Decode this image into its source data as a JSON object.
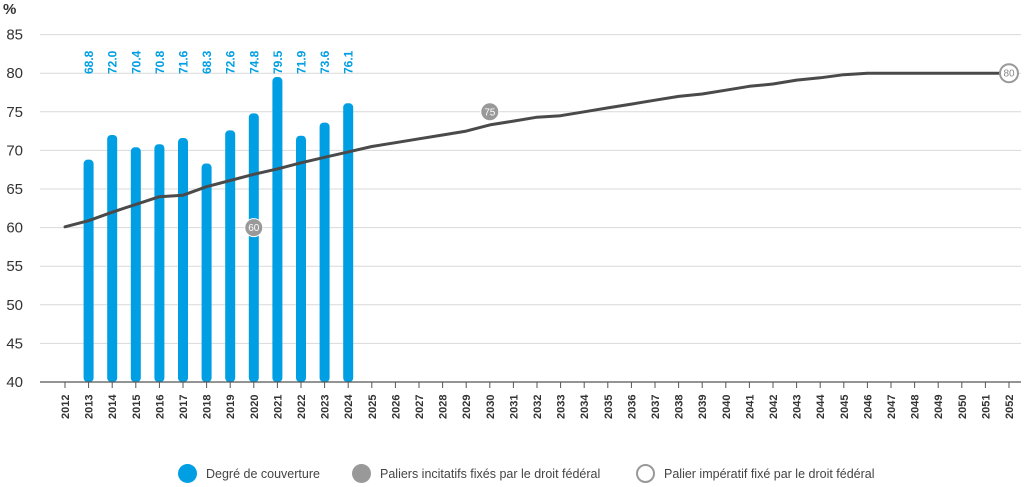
{
  "chart_data": {
    "type": "bar+line",
    "unit_label": "%",
    "ylim": [
      40,
      85
    ],
    "yticks": [
      40,
      45,
      50,
      55,
      60,
      65,
      70,
      75,
      80,
      85
    ],
    "grid": true,
    "years": [
      "2012",
      "2013",
      "2014",
      "2015",
      "2016",
      "2017",
      "2018",
      "2019",
      "2020",
      "2021",
      "2022",
      "2023",
      "2024",
      "2025",
      "2026",
      "2027",
      "2028",
      "2029",
      "2030",
      "2031",
      "2032",
      "2033",
      "2034",
      "2035",
      "2036",
      "2037",
      "2038",
      "2039",
      "2040",
      "2041",
      "2042",
      "2043",
      "2044",
      "2045",
      "2046",
      "2047",
      "2048",
      "2049",
      "2050",
      "2051",
      "2052"
    ],
    "bars": {
      "name": "Degré de couverture",
      "color": "#009fe3",
      "years": [
        "2013",
        "2014",
        "2015",
        "2016",
        "2017",
        "2018",
        "2019",
        "2020",
        "2021",
        "2022",
        "2023",
        "2024"
      ],
      "values": [
        68.8,
        72.0,
        70.4,
        70.8,
        71.6,
        68.3,
        72.6,
        74.8,
        79.5,
        71.9,
        73.6,
        76.1
      ],
      "labels": [
        "68.8",
        "72.0",
        "70.4",
        "70.8",
        "71.6",
        "68.3",
        "72.6",
        "74.8",
        "79.5",
        "71.9",
        "73.6",
        "76.1"
      ]
    },
    "line": {
      "color": "#4a4a4a",
      "years": [
        "2012",
        "2013",
        "2014",
        "2015",
        "2016",
        "2017",
        "2018",
        "2019",
        "2020",
        "2021",
        "2022",
        "2023",
        "2024",
        "2025",
        "2026",
        "2027",
        "2028",
        "2029",
        "2030",
        "2031",
        "2032",
        "2033",
        "2034",
        "2035",
        "2036",
        "2037",
        "2038",
        "2039",
        "2040",
        "2041",
        "2042",
        "2043",
        "2044",
        "2045",
        "2046",
        "2047",
        "2048",
        "2049",
        "2050",
        "2051",
        "2052"
      ],
      "values": [
        60.1,
        60.9,
        62.0,
        63.0,
        64.0,
        64.2,
        65.3,
        66.1,
        66.9,
        67.6,
        68.4,
        69.1,
        69.8,
        70.5,
        71.0,
        71.5,
        72.0,
        72.5,
        73.3,
        73.8,
        74.3,
        74.5,
        75.0,
        75.5,
        76.0,
        76.5,
        77.0,
        77.3,
        77.8,
        78.3,
        78.6,
        79.1,
        79.4,
        79.8,
        80.0,
        80.0,
        80.0,
        80.0,
        80.0,
        80.0,
        80.0
      ]
    },
    "markers": [
      {
        "year": "2020",
        "value": 60,
        "label": "60",
        "style": "filled"
      },
      {
        "year": "2030",
        "value": 75,
        "label": "75",
        "style": "filled"
      },
      {
        "year": "2052",
        "value": 80,
        "label": "80",
        "style": "hollow"
      }
    ],
    "legend": [
      {
        "label": "Degré de couverture",
        "style": "bar",
        "color": "#009fe3"
      },
      {
        "label": "Paliers incitatifs fixés par le droit fédéral",
        "style": "filled",
        "color": "#999999"
      },
      {
        "label": "Palier impératif fixé par le droit fédéral",
        "style": "hollow",
        "color": "#999999"
      }
    ],
    "colors": {
      "bar": "#009fe3",
      "line": "#4a4a4a",
      "marker": "#999999",
      "grid": "#d9d9d9",
      "axis": "#555555"
    }
  }
}
